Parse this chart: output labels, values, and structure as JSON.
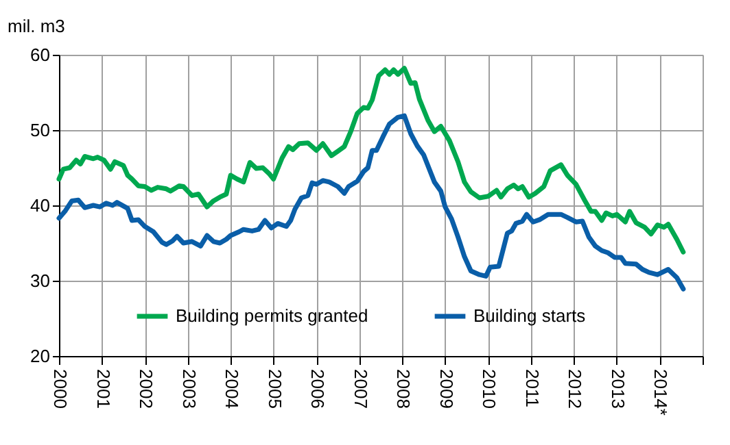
{
  "chart_data": {
    "type": "line",
    "ylabel": "mil. m3",
    "xlim": [
      2000,
      2015
    ],
    "ylim": [
      20,
      60
    ],
    "yticks": [
      20,
      30,
      40,
      50,
      60
    ],
    "xticks": [
      2000,
      2001,
      2002,
      2003,
      2004,
      2005,
      2006,
      2007,
      2008,
      2009,
      2010,
      2011,
      2012,
      2013,
      {
        "value": 2014,
        "label": "2014*"
      },
      {
        "value": 2015,
        "label": null
      }
    ],
    "grid": true,
    "legend": "bottom",
    "line_style": "solid",
    "series": [
      {
        "name": "Building permits granted",
        "color": "#00a84f",
        "x": [
          2000,
          2000.1,
          2000.25,
          2000.4,
          2000.5,
          2000.6,
          2000.8,
          2000.9,
          2001.05,
          2001.2,
          2001.3,
          2001.5,
          2001.6,
          2001.7,
          2001.85,
          2002,
          2002.15,
          2002.3,
          2002.5,
          2002.6,
          2002.8,
          2002.9,
          2003.1,
          2003.25,
          2003.45,
          2003.6,
          2003.75,
          2003.9,
          2004,
          2004.15,
          2004.3,
          2004.45,
          2004.6,
          2004.75,
          2004.9,
          2005,
          2005.2,
          2005.35,
          2005.45,
          2005.6,
          2005.8,
          2006,
          2006.15,
          2006.35,
          2006.5,
          2006.65,
          2006.8,
          2006.95,
          2007.1,
          2007.2,
          2007.3,
          2007.45,
          2007.6,
          2007.7,
          2007.8,
          2007.9,
          2008.05,
          2008.2,
          2008.3,
          2008.4,
          2008.6,
          2008.75,
          2008.9,
          2009.1,
          2009.3,
          2009.45,
          2009.6,
          2009.8,
          2010,
          2010.2,
          2010.3,
          2010.45,
          2010.6,
          2010.7,
          2010.8,
          2010.95,
          2011.1,
          2011.3,
          2011.45,
          2011.7,
          2011.85,
          2012.05,
          2012.25,
          2012.4,
          2012.5,
          2012.65,
          2012.75,
          2012.9,
          2013,
          2013.2,
          2013.3,
          2013.45,
          2013.65,
          2013.8,
          2013.95,
          2014.1,
          2014.2,
          2014.4,
          2014.55
        ],
        "values": [
          43.5,
          44.8,
          45,
          46,
          45.5,
          46.5,
          46.2,
          46.4,
          46,
          44.8,
          45.8,
          45.3,
          44,
          43.5,
          42.6,
          42.5,
          42,
          42.4,
          42.2,
          41.9,
          42.6,
          42.5,
          41.3,
          41.5,
          39.8,
          40.6,
          41.1,
          41.5,
          44,
          43.5,
          43.1,
          45.7,
          44.9,
          45,
          44.2,
          43.5,
          46.3,
          47.8,
          47.4,
          48.2,
          48.3,
          47.3,
          48.2,
          46.6,
          47.2,
          47.8,
          49.8,
          52.2,
          53,
          52.9,
          54,
          57.2,
          58,
          57.4,
          58,
          57.4,
          58.2,
          56.2,
          56.3,
          54.1,
          51.3,
          49.8,
          50.5,
          48.6,
          45.8,
          43.1,
          41.8,
          41,
          41.2,
          42,
          41.1,
          42.2,
          42.7,
          42.2,
          42.5,
          41.1,
          41.6,
          42.5,
          44.6,
          45.4,
          44,
          42.8,
          40.7,
          39.2,
          39.2,
          38,
          39,
          38.6,
          38.8,
          37.8,
          39.2,
          37.7,
          37.1,
          36.2,
          37.4,
          37.1,
          37.5,
          35.5,
          33.8
        ]
      },
      {
        "name": "Building starts",
        "color": "#0a5ea8",
        "x": [
          2000,
          2000.15,
          2000.3,
          2000.45,
          2000.6,
          2000.8,
          2000.95,
          2001.1,
          2001.25,
          2001.35,
          2001.6,
          2001.7,
          2001.85,
          2002,
          2002.2,
          2002.4,
          2002.5,
          2002.65,
          2002.75,
          2002.9,
          2003.1,
          2003.3,
          2003.45,
          2003.6,
          2003.75,
          2003.9,
          2004,
          2004.2,
          2004.3,
          2004.5,
          2004.65,
          2004.8,
          2004.95,
          2005.1,
          2005.3,
          2005.4,
          2005.5,
          2005.65,
          2005.8,
          2005.9,
          2006,
          2006.15,
          2006.3,
          2006.5,
          2006.65,
          2006.75,
          2006.95,
          2007.1,
          2007.2,
          2007.3,
          2007.4,
          2007.55,
          2007.7,
          2007.9,
          2008.05,
          2008.2,
          2008.35,
          2008.5,
          2008.75,
          2008.9,
          2009,
          2009.15,
          2009.3,
          2009.45,
          2009.6,
          2009.8,
          2009.95,
          2010.05,
          2010.25,
          2010.45,
          2010.55,
          2010.65,
          2010.8,
          2010.9,
          2011.05,
          2011.2,
          2011.4,
          2011.7,
          2011.85,
          2012.05,
          2012.2,
          2012.35,
          2012.5,
          2012.65,
          2012.8,
          2012.95,
          2013.1,
          2013.2,
          2013.45,
          2013.6,
          2013.75,
          2013.95,
          2014.2,
          2014.4,
          2014.55
        ],
        "values": [
          38.3,
          39.3,
          40.6,
          40.7,
          39.7,
          40,
          39.8,
          40.3,
          40,
          40.4,
          39.6,
          38,
          38.1,
          37.2,
          36.5,
          35.1,
          34.8,
          35.3,
          35.9,
          35,
          35.2,
          34.6,
          36,
          35.2,
          35,
          35.5,
          36,
          36.5,
          36.8,
          36.6,
          36.8,
          38,
          37,
          37.6,
          37.2,
          38,
          39.5,
          41,
          41.3,
          43,
          42.8,
          43.3,
          43.1,
          42.5,
          41.6,
          42.5,
          43.2,
          44.5,
          45,
          47.3,
          47.3,
          49.1,
          50.8,
          51.7,
          51.9,
          49.5,
          47.9,
          46.7,
          43.1,
          41.9,
          39.8,
          38.2,
          35.8,
          33.2,
          31.3,
          30.8,
          30.6,
          31.8,
          31.9,
          36.3,
          36.6,
          37.6,
          37.9,
          38.8,
          37.8,
          38.1,
          38.8,
          38.8,
          38.4,
          37.8,
          37.9,
          35.8,
          34.6,
          34,
          33.7,
          33.1,
          33.1,
          32.3,
          32.2,
          31.5,
          31.1,
          30.8,
          31.5,
          30.4,
          28.9
        ]
      }
    ]
  }
}
